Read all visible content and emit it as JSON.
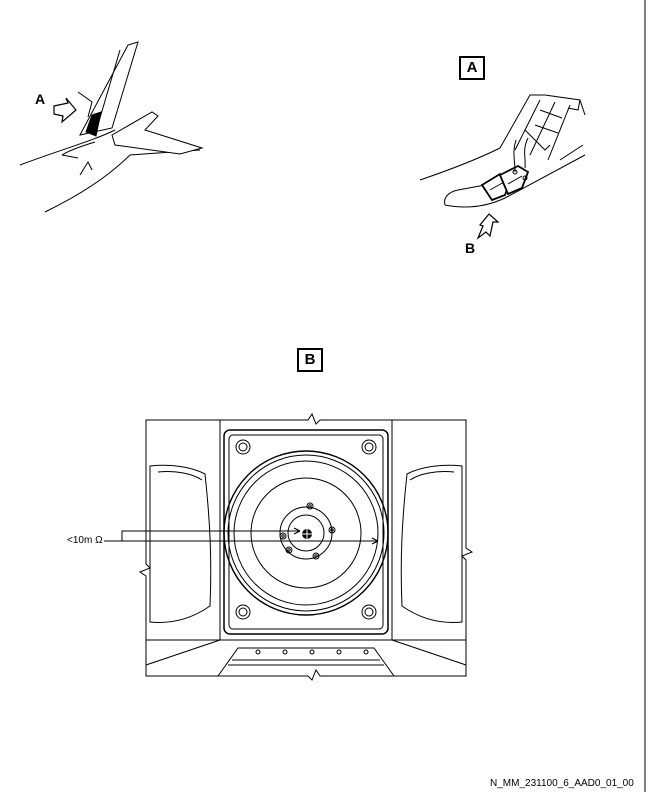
{
  "labels": {
    "callout_a": "A",
    "callout_b": "B",
    "view_a": "A",
    "view_b": "B",
    "resistance": "<10m Ω",
    "reference": "N_MM_231100_6_AAD0_01_00"
  }
}
